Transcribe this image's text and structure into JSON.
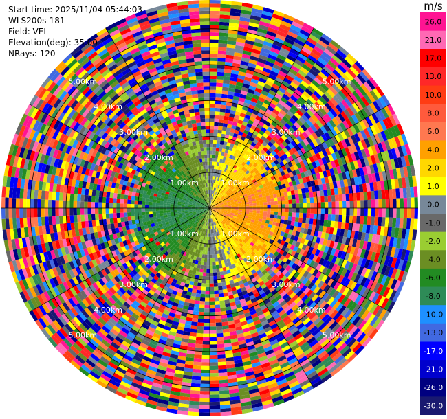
{
  "info": {
    "start_time": "Start time: 2025/11/04 05:44:03",
    "instrument": "WLS200s-181",
    "field": "Field: VEL",
    "elevation": "Elevation(deg): 35.00",
    "nrays": "NRays: 120"
  },
  "colorbar": {
    "title": "m/s",
    "ticks": [
      "26.0",
      "21.0",
      "17.0",
      "13.0",
      "10.0",
      "8.0",
      "6.0",
      "4.0",
      "2.0",
      "1.0",
      "0.0",
      "-1.0",
      "-2.0",
      "-4.0",
      "-6.0",
      "-8.0",
      "-10.0",
      "-13.0",
      "-17.0",
      "-21.0",
      "-26.0",
      "-30.0"
    ],
    "colors": [
      "#ff1493",
      "#ff69b4",
      "#ff0000",
      "#ff2828",
      "#ff3c14",
      "#ff5a3c",
      "#ff7850",
      "#ffa000",
      "#ffd700",
      "#ffff00",
      "#778899",
      "#696969",
      "#9acd32",
      "#6b8e23",
      "#228b22",
      "#2e8b57",
      "#1e90ff",
      "#4169e1",
      "#0000ff",
      "#0000cd",
      "#000080",
      "#191970"
    ]
  },
  "chart_data": {
    "type": "polar-ppi",
    "field": "VEL",
    "units": "m/s",
    "nrays": 120,
    "elevation_deg": 35.0,
    "range_rings_km": [
      1.0,
      2.0,
      3.0,
      4.0,
      5.0
    ],
    "ring_label_text": [
      "1.00km",
      "2.00km",
      "3.00km",
      "4.00km",
      "5.00km"
    ],
    "max_range_km": 5.8,
    "grid": true,
    "legend": "right"
  }
}
